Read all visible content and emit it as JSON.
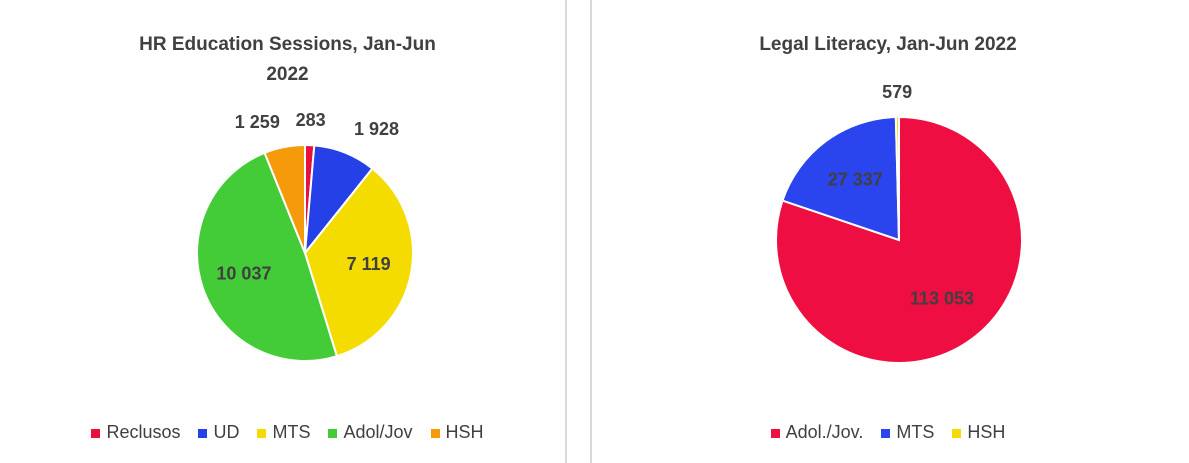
{
  "chart_data": [
    {
      "type": "pie",
      "title": "HR Education Sessions, Jan-Jun 2022",
      "categories": [
        "Reclusos",
        "UD",
        "MTS",
        "Adol/Jov",
        "HSH"
      ],
      "values": [
        283,
        1928,
        7119,
        10037,
        1259
      ],
      "value_labels": [
        "283",
        "1 928",
        "7 119",
        "10 037",
        "1 259"
      ],
      "colors": [
        "#e8103c",
        "#2640e8",
        "#f5dc00",
        "#44cc38",
        "#f59a0a"
      ],
      "legend": "bottom"
    },
    {
      "type": "pie",
      "title": "Legal Literacy, Jan-Jun 2022",
      "categories": [
        "Adol./Jov.",
        "MTS",
        "HSH"
      ],
      "values": [
        113053,
        27337,
        579
      ],
      "value_labels": [
        "113 053",
        "27 337",
        "579"
      ],
      "colors": [
        "#ee0e42",
        "#2a44ee",
        "#f5dc00"
      ],
      "legend": "bottom"
    }
  ]
}
